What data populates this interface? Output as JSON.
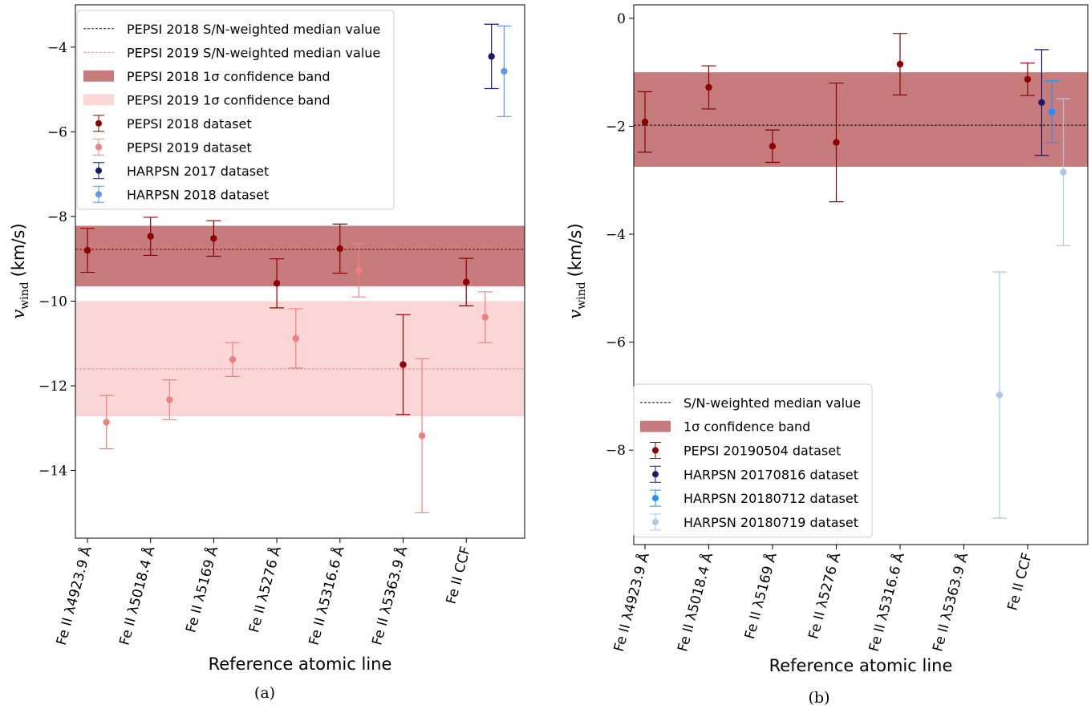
{
  "chart_data": [
    {
      "type": "scatter",
      "caption": "(a)",
      "xlabel": "Reference atomic line",
      "ylabel_main": "v",
      "ylabel_sub": "wind",
      "ylabel_unit": "(km/s)",
      "categories": [
        "Fe II λ4923.9 Å",
        "Fe II λ5018.4 Å",
        "Fe II λ5169 Å",
        "Fe II λ5276 Å",
        "Fe II λ5316.6 Å",
        "Fe II λ5363.9 Å",
        "Fe II CCF"
      ],
      "ylim": [
        -15.6,
        -3.0
      ],
      "yticks": [
        -14,
        -12,
        -10,
        -8,
        -6,
        -4
      ],
      "ytick_labels": [
        "−14",
        "−12",
        "−10",
        "−8",
        "−6",
        "−4"
      ],
      "grid": false,
      "legend_position": "top-left",
      "bands": [
        {
          "name": "PEPSI 2018 1σ confidence band",
          "lo": -9.65,
          "hi": -8.22,
          "color": "#b04a4a",
          "opacity": 0.72
        },
        {
          "name": "PEPSI 2019 1σ confidence band",
          "lo": -12.72,
          "hi": -10.0,
          "color": "#f5b5b5",
          "opacity": 0.55
        }
      ],
      "median_lines": [
        {
          "name": "PEPSI 2018 S/N-weighted median value",
          "y": -8.78,
          "color": "#8b0000"
        },
        {
          "name": "PEPSI 2019 S/N-weighted median value",
          "y": -11.6,
          "color": "#f08080"
        }
      ],
      "series": [
        {
          "name": "PEPSI 2018 dataset",
          "color": "#8b0000",
          "offset": 0.0,
          "points": [
            [
              0,
              -8.8,
              0.52
            ],
            [
              1,
              -8.47,
              0.45
            ],
            [
              2,
              -8.52,
              0.42
            ],
            [
              3,
              -9.58,
              0.58
            ],
            [
              4,
              -8.76,
              0.58
            ],
            [
              5,
              -11.5,
              1.18
            ],
            [
              6,
              -9.55,
              0.56
            ]
          ]
        },
        {
          "name": "PEPSI 2019 dataset",
          "color": "#f08080",
          "offset": 0.3,
          "points": [
            [
              0,
              -12.86,
              0.63
            ],
            [
              1,
              -12.33,
              0.47
            ],
            [
              2,
              -11.38,
              0.4
            ],
            [
              3,
              -10.88,
              0.7
            ],
            [
              4,
              -9.27,
              0.63
            ],
            [
              5,
              -13.18,
              1.82
            ],
            [
              6,
              -10.38,
              0.6
            ]
          ]
        },
        {
          "name": "HARPSN 2017 dataset",
          "color": "#191970",
          "offset": 0.4,
          "points": [
            [
              6,
              -4.22,
              0.76
            ]
          ]
        },
        {
          "name": "HARPSN 2018 dataset",
          "color": "#6495ed",
          "offset": 0.6,
          "points": [
            [
              6,
              -4.57,
              1.07
            ]
          ]
        }
      ]
    },
    {
      "type": "scatter",
      "caption": "(b)",
      "xlabel": "Reference atomic line",
      "ylabel_main": "v",
      "ylabel_sub": "wind",
      "ylabel_unit": "(km/s)",
      "categories": [
        "Fe II λ4923.9 Å",
        "Fe II λ5018.4 Å",
        "Fe II λ5169 Å",
        "Fe II λ5276 Å",
        "Fe II λ5316.6 Å",
        "Fe II λ5363.9 Å",
        "Fe II CCF"
      ],
      "ylim": [
        -9.75,
        0.25
      ],
      "yticks": [
        -8,
        -6,
        -4,
        -2,
        0
      ],
      "ytick_labels": [
        "−8",
        "−6",
        "−4",
        "−2",
        "0"
      ],
      "grid": false,
      "legend_position": "bottom-left",
      "bands": [
        {
          "name": "1σ confidence band",
          "lo": -2.75,
          "hi": -1.0,
          "color": "#b04a4a",
          "opacity": 0.72
        }
      ],
      "median_lines": [
        {
          "name": "S/N-weighted median value",
          "y": -1.98,
          "color": "#000000"
        }
      ],
      "series": [
        {
          "name": "PEPSI 20190504 dataset",
          "color": "#8b0000",
          "offset": 0.0,
          "points": [
            [
              0,
              -1.92,
              0.56
            ],
            [
              1,
              -1.28,
              0.4
            ],
            [
              2,
              -2.37,
              0.3
            ],
            [
              3,
              -2.3,
              1.1
            ],
            [
              4,
              -0.85,
              0.57
            ],
            [
              6,
              -1.13,
              0.3
            ]
          ]
        },
        {
          "name": "HARPSN 20170816 dataset",
          "color": "#191970",
          "offset": 0.22,
          "points": [
            [
              6,
              -1.56,
              0.98
            ]
          ]
        },
        {
          "name": "HARPSN 20180712 dataset",
          "color": "#1e90ff",
          "offset": 0.38,
          "points": [
            [
              6,
              -1.73,
              0.57
            ]
          ]
        },
        {
          "name": "HARPSN 20180719 dataset",
          "color": "#aec6e8",
          "offset": 0.56,
          "points": [
            [
              6,
              -2.85,
              1.36
            ],
            [
              5,
              -6.98,
              2.28
            ]
          ]
        }
      ]
    }
  ]
}
